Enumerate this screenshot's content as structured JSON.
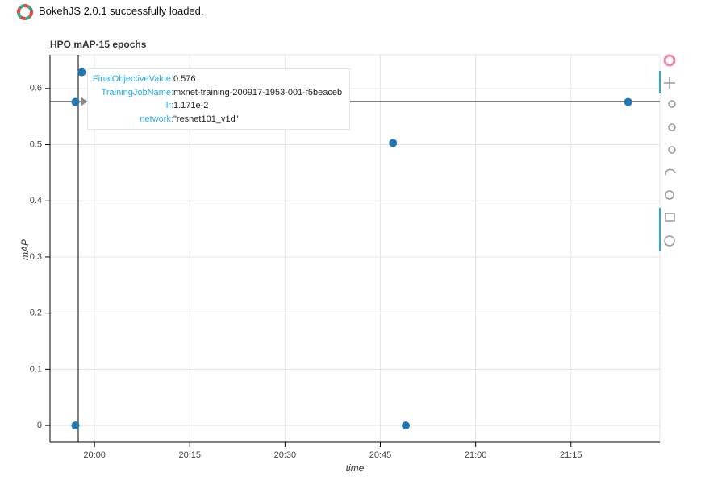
{
  "banner": "BokehJS 2.0.1 successfully loaded.",
  "chart_data": {
    "type": "scatter",
    "title": "HPO mAP-15 epochs",
    "x_label": "time",
    "y_label": "mAP",
    "x": [
      "19:57",
      "19:57",
      "19:58",
      "20:47",
      "20:49",
      "21:24"
    ],
    "values": [
      0,
      0.576,
      0.629,
      0.503,
      0,
      0.576
    ],
    "color": "#1f77b4",
    "xlim": [
      "19:53",
      "21:29"
    ],
    "xticks": [
      "20:00",
      "20:15",
      "20:30",
      "20:45",
      "21:00",
      "21:15"
    ],
    "ylim": [
      -0.03,
      0.66
    ],
    "yticks": [
      0,
      0.1,
      0.2,
      0.3,
      0.4,
      0.5,
      0.6
    ],
    "grid": true
  },
  "tooltip": {
    "rows": [
      {
        "key": "FinalObjectiveValue:",
        "value": "0.576"
      },
      {
        "key": "TrainingJobName:",
        "value": "mxnet-training-200917-1953-001-f5beaceb"
      },
      {
        "key": "lr:",
        "value": "1.171e-2"
      },
      {
        "key": "network:",
        "value": "\"resnet101_v1d\""
      }
    ]
  }
}
